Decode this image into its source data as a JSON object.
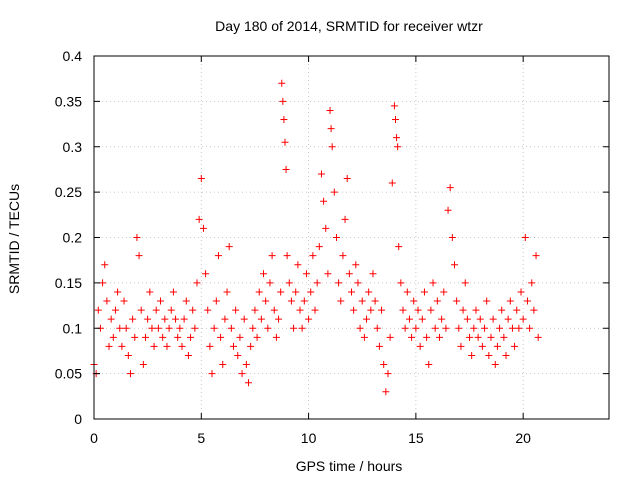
{
  "chart_data": {
    "type": "scatter",
    "title": "Day 180 of 2014, SRMTID for receiver wtzr",
    "xlabel": "GPS time / hours",
    "ylabel": "SRMTID / TECUs",
    "xlim": [
      0,
      24
    ],
    "ylim": [
      0,
      0.4
    ],
    "xticks": [
      0,
      5,
      10,
      15,
      20
    ],
    "yticks": [
      0,
      0.05,
      0.1,
      0.15,
      0.2,
      0.25,
      0.3,
      0.35,
      0.4
    ],
    "xtick_labels": [
      "0",
      "5",
      "10",
      "15",
      "20"
    ],
    "ytick_labels": [
      "0",
      "0.05",
      "0.1",
      "0.15",
      "0.2",
      "0.25",
      "0.3",
      "0.35",
      "0.4"
    ],
    "grid": true,
    "marker": "+",
    "color": "#ff0000",
    "series": [
      {
        "name": "wtzr",
        "points": [
          [
            0.0,
            0.06
          ],
          [
            0.1,
            0.05
          ],
          [
            0.2,
            0.12
          ],
          [
            0.3,
            0.1
          ],
          [
            0.4,
            0.15
          ],
          [
            0.5,
            0.17
          ],
          [
            0.6,
            0.13
          ],
          [
            0.7,
            0.08
          ],
          [
            0.8,
            0.11
          ],
          [
            0.9,
            0.09
          ],
          [
            1.0,
            0.12
          ],
          [
            1.1,
            0.14
          ],
          [
            1.2,
            0.1
          ],
          [
            1.3,
            0.08
          ],
          [
            1.4,
            0.13
          ],
          [
            1.5,
            0.1
          ],
          [
            1.6,
            0.07
          ],
          [
            1.7,
            0.05
          ],
          [
            1.8,
            0.11
          ],
          [
            1.9,
            0.09
          ],
          [
            2.0,
            0.2
          ],
          [
            2.1,
            0.18
          ],
          [
            2.2,
            0.12
          ],
          [
            2.3,
            0.06
          ],
          [
            2.4,
            0.09
          ],
          [
            2.5,
            0.11
          ],
          [
            2.6,
            0.14
          ],
          [
            2.7,
            0.1
          ],
          [
            2.8,
            0.08
          ],
          [
            2.9,
            0.12
          ],
          [
            3.0,
            0.1
          ],
          [
            3.1,
            0.13
          ],
          [
            3.2,
            0.09
          ],
          [
            3.3,
            0.11
          ],
          [
            3.4,
            0.08
          ],
          [
            3.5,
            0.1
          ],
          [
            3.6,
            0.12
          ],
          [
            3.7,
            0.14
          ],
          [
            3.8,
            0.11
          ],
          [
            3.9,
            0.09
          ],
          [
            4.0,
            0.1
          ],
          [
            4.1,
            0.08
          ],
          [
            4.2,
            0.11
          ],
          [
            4.3,
            0.13
          ],
          [
            4.4,
            0.07
          ],
          [
            4.5,
            0.09
          ],
          [
            4.6,
            0.12
          ],
          [
            4.7,
            0.1
          ],
          [
            4.8,
            0.15
          ],
          [
            4.9,
            0.22
          ],
          [
            5.0,
            0.265
          ],
          [
            5.1,
            0.21
          ],
          [
            5.2,
            0.16
          ],
          [
            5.3,
            0.12
          ],
          [
            5.4,
            0.08
          ],
          [
            5.5,
            0.05
          ],
          [
            5.6,
            0.1
          ],
          [
            5.7,
            0.13
          ],
          [
            5.8,
            0.18
          ],
          [
            5.9,
            0.09
          ],
          [
            6.0,
            0.06
          ],
          [
            6.1,
            0.11
          ],
          [
            6.2,
            0.14
          ],
          [
            6.3,
            0.19
          ],
          [
            6.4,
            0.1
          ],
          [
            6.5,
            0.08
          ],
          [
            6.6,
            0.12
          ],
          [
            6.7,
            0.07
          ],
          [
            6.8,
            0.09
          ],
          [
            6.9,
            0.05
          ],
          [
            7.0,
            0.11
          ],
          [
            7.1,
            0.06
          ],
          [
            7.2,
            0.04
          ],
          [
            7.3,
            0.08
          ],
          [
            7.4,
            0.1
          ],
          [
            7.5,
            0.12
          ],
          [
            7.6,
            0.09
          ],
          [
            7.7,
            0.14
          ],
          [
            7.8,
            0.11
          ],
          [
            7.9,
            0.16
          ],
          [
            8.0,
            0.13
          ],
          [
            8.1,
            0.1
          ],
          [
            8.2,
            0.15
          ],
          [
            8.3,
            0.18
          ],
          [
            8.4,
            0.12
          ],
          [
            8.5,
            0.09
          ],
          [
            8.6,
            0.11
          ],
          [
            8.7,
            0.14
          ],
          [
            8.75,
            0.37
          ],
          [
            8.8,
            0.35
          ],
          [
            8.85,
            0.33
          ],
          [
            8.9,
            0.305
          ],
          [
            8.95,
            0.275
          ],
          [
            9.0,
            0.18
          ],
          [
            9.1,
            0.15
          ],
          [
            9.2,
            0.13
          ],
          [
            9.3,
            0.1
          ],
          [
            9.4,
            0.14
          ],
          [
            9.5,
            0.17
          ],
          [
            9.6,
            0.12
          ],
          [
            9.7,
            0.1
          ],
          [
            9.8,
            0.13
          ],
          [
            9.9,
            0.16
          ],
          [
            10.0,
            0.11
          ],
          [
            10.1,
            0.14
          ],
          [
            10.2,
            0.18
          ],
          [
            10.3,
            0.12
          ],
          [
            10.4,
            0.15
          ],
          [
            10.5,
            0.19
          ],
          [
            10.6,
            0.27
          ],
          [
            10.7,
            0.24
          ],
          [
            10.8,
            0.21
          ],
          [
            10.9,
            0.16
          ],
          [
            11.0,
            0.34
          ],
          [
            11.05,
            0.32
          ],
          [
            11.1,
            0.3
          ],
          [
            11.2,
            0.25
          ],
          [
            11.3,
            0.2
          ],
          [
            11.4,
            0.15
          ],
          [
            11.5,
            0.13
          ],
          [
            11.6,
            0.18
          ],
          [
            11.7,
            0.22
          ],
          [
            11.8,
            0.265
          ],
          [
            11.9,
            0.16
          ],
          [
            12.0,
            0.14
          ],
          [
            12.1,
            0.12
          ],
          [
            12.2,
            0.17
          ],
          [
            12.3,
            0.15
          ],
          [
            12.4,
            0.1
          ],
          [
            12.5,
            0.13
          ],
          [
            12.6,
            0.09
          ],
          [
            12.7,
            0.11
          ],
          [
            12.8,
            0.14
          ],
          [
            12.9,
            0.12
          ],
          [
            13.0,
            0.16
          ],
          [
            13.1,
            0.13
          ],
          [
            13.2,
            0.1
          ],
          [
            13.3,
            0.08
          ],
          [
            13.4,
            0.12
          ],
          [
            13.5,
            0.06
          ],
          [
            13.6,
            0.03
          ],
          [
            13.7,
            0.05
          ],
          [
            13.8,
            0.09
          ],
          [
            13.9,
            0.26
          ],
          [
            14.0,
            0.345
          ],
          [
            14.05,
            0.33
          ],
          [
            14.1,
            0.31
          ],
          [
            14.15,
            0.3
          ],
          [
            14.2,
            0.19
          ],
          [
            14.3,
            0.15
          ],
          [
            14.4,
            0.12
          ],
          [
            14.5,
            0.1
          ],
          [
            14.6,
            0.14
          ],
          [
            14.7,
            0.11
          ],
          [
            14.8,
            0.09
          ],
          [
            14.9,
            0.13
          ],
          [
            15.0,
            0.1
          ],
          [
            15.1,
            0.12
          ],
          [
            15.2,
            0.08
          ],
          [
            15.3,
            0.11
          ],
          [
            15.4,
            0.14
          ],
          [
            15.5,
            0.09
          ],
          [
            15.6,
            0.06
          ],
          [
            15.7,
            0.12
          ],
          [
            15.8,
            0.15
          ],
          [
            15.9,
            0.1
          ],
          [
            16.0,
            0.13
          ],
          [
            16.1,
            0.09
          ],
          [
            16.2,
            0.11
          ],
          [
            16.3,
            0.14
          ],
          [
            16.4,
            0.1
          ],
          [
            16.5,
            0.23
          ],
          [
            16.6,
            0.255
          ],
          [
            16.7,
            0.2
          ],
          [
            16.8,
            0.17
          ],
          [
            16.9,
            0.13
          ],
          [
            17.0,
            0.1
          ],
          [
            17.1,
            0.08
          ],
          [
            17.2,
            0.12
          ],
          [
            17.3,
            0.15
          ],
          [
            17.4,
            0.11
          ],
          [
            17.5,
            0.09
          ],
          [
            17.6,
            0.07
          ],
          [
            17.7,
            0.1
          ],
          [
            17.8,
            0.12
          ],
          [
            17.9,
            0.09
          ],
          [
            18.0,
            0.11
          ],
          [
            18.1,
            0.08
          ],
          [
            18.2,
            0.1
          ],
          [
            18.3,
            0.13
          ],
          [
            18.4,
            0.07
          ],
          [
            18.5,
            0.09
          ],
          [
            18.6,
            0.11
          ],
          [
            18.7,
            0.06
          ],
          [
            18.8,
            0.08
          ],
          [
            18.9,
            0.1
          ],
          [
            19.0,
            0.12
          ],
          [
            19.1,
            0.09
          ],
          [
            19.2,
            0.07
          ],
          [
            19.3,
            0.11
          ],
          [
            19.4,
            0.13
          ],
          [
            19.5,
            0.1
          ],
          [
            19.6,
            0.08
          ],
          [
            19.7,
            0.12
          ],
          [
            19.8,
            0.1
          ],
          [
            19.9,
            0.14
          ],
          [
            20.0,
            0.11
          ],
          [
            20.1,
            0.2
          ],
          [
            20.2,
            0.13
          ],
          [
            20.3,
            0.1
          ],
          [
            20.4,
            0.15
          ],
          [
            20.5,
            0.12
          ],
          [
            20.6,
            0.18
          ],
          [
            20.7,
            0.09
          ]
        ]
      }
    ]
  }
}
